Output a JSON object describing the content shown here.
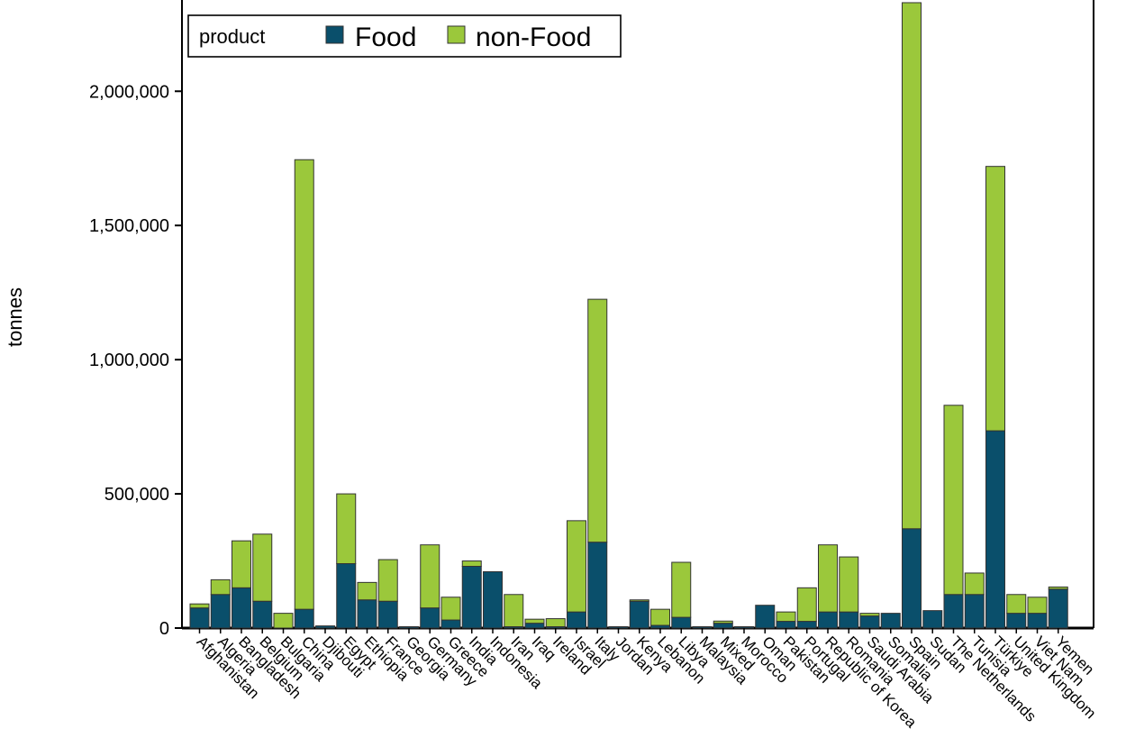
{
  "colors": {
    "food": "#0a4f6b",
    "non_food": "#9bc83b",
    "axis": "#000000",
    "bar_outline": "#333333"
  },
  "chart_data": {
    "type": "bar",
    "stacked": true,
    "ylabel": "tonnes",
    "xlabel": "",
    "title": "",
    "ylim": [
      0,
      2340000
    ],
    "yticks": [
      0,
      500000,
      1000000,
      1500000,
      2000000
    ],
    "ytick_labels": [
      "0",
      "500,000",
      "1,000,000",
      "1,500,000",
      "2,000,000"
    ],
    "grid": false,
    "legend": {
      "title": "product",
      "placement": "top-left"
    },
    "categories": [
      "Afghanistan",
      "Algeria",
      "Bangladesh",
      "Belgium",
      "Bulgaria",
      "China",
      "Djibouti",
      "Egypt",
      "Ethiopia",
      "France",
      "Georgia",
      "Germany",
      "Greece",
      "India",
      "Indonesia",
      "Iran",
      "Iraq",
      "Ireland",
      "Israel",
      "Italy",
      "Jordan",
      "Kenya",
      "Lebanon",
      "Libya",
      "Malaysia",
      "Mixed",
      "Morocco",
      "Oman",
      "Pakistan",
      "Portugal",
      "Republic of Korea",
      "Romania",
      "Saudi Arabia",
      "Somalia",
      "Spain",
      "Sudan",
      "The Netherlands",
      "Tunisia",
      "Türkiye",
      "United Kingdom",
      "Viet Nam",
      "Yemen"
    ],
    "series": [
      {
        "name": "Food",
        "values": [
          75000,
          125000,
          150000,
          100000,
          0,
          70000,
          8000,
          240000,
          105000,
          100000,
          5000,
          75000,
          30000,
          230000,
          210000,
          5000,
          18000,
          5000,
          60000,
          320000,
          5000,
          100000,
          10000,
          40000,
          5000,
          18000,
          5000,
          85000,
          25000,
          25000,
          60000,
          60000,
          45000,
          55000,
          370000,
          65000,
          125000,
          125000,
          735000,
          55000,
          55000,
          145000
        ]
      },
      {
        "name": "non-Food",
        "values": [
          15000,
          55000,
          175000,
          250000,
          55000,
          1675000,
          0,
          260000,
          65000,
          155000,
          0,
          235000,
          85000,
          20000,
          0,
          120000,
          15000,
          30000,
          340000,
          905000,
          0,
          5000,
          60000,
          205000,
          0,
          8000,
          0,
          0,
          35000,
          125000,
          250000,
          205000,
          10000,
          0,
          1960000,
          0,
          705000,
          80000,
          985000,
          70000,
          60000,
          8000
        ]
      }
    ]
  }
}
